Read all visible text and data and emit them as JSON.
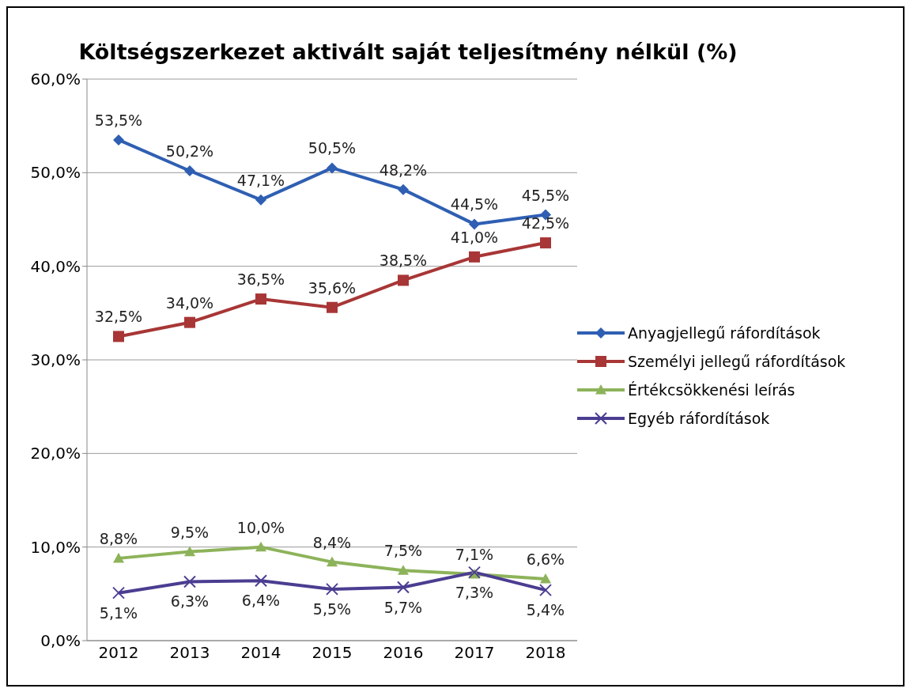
{
  "chart_data": {
    "type": "line",
    "title": "Költségszerkezet aktivált saját teljesítmény nélkül (%)",
    "categories": [
      "2012",
      "2013",
      "2014",
      "2015",
      "2016",
      "2017",
      "2018"
    ],
    "series": [
      {
        "name": "Anyagjellegű ráfordítások",
        "color": "#2f5fb3",
        "marker": "diamond",
        "values": [
          53.5,
          50.2,
          47.1,
          50.5,
          48.2,
          44.5,
          45.5
        ],
        "value_labels": [
          "53,5%",
          "50,2%",
          "47,1%",
          "50,5%",
          "48,2%",
          "44,5%",
          "45,5%"
        ]
      },
      {
        "name": "Személyi jellegű ráfordítások",
        "color": "#a83636",
        "marker": "square",
        "values": [
          32.5,
          34.0,
          36.5,
          35.6,
          38.5,
          41.0,
          42.5
        ],
        "value_labels": [
          "32,5%",
          "34,0%",
          "36,5%",
          "35,6%",
          "38,5%",
          "41,0%",
          "42,5%"
        ]
      },
      {
        "name": "Értékcsökkenési leírás",
        "color": "#8db35a",
        "marker": "triangle",
        "values": [
          8.8,
          9.5,
          10.0,
          8.4,
          7.5,
          7.1,
          6.6
        ],
        "value_labels": [
          "8,8%",
          "9,5%",
          "10,0%",
          "8,4%",
          "7,5%",
          "7,1%",
          "6,6%"
        ]
      },
      {
        "name": "Egyéb ráfordítások",
        "color": "#4b3d91",
        "marker": "cross",
        "values": [
          5.1,
          6.3,
          6.4,
          5.5,
          5.7,
          7.3,
          5.4
        ],
        "value_labels": [
          "5,1%",
          "6,3%",
          "6,4%",
          "5,5%",
          "5,7%",
          "7,3%",
          "5,4%"
        ]
      }
    ],
    "ylim": [
      0,
      60
    ],
    "yticks": [
      {
        "value": 0,
        "label": "0,0%"
      },
      {
        "value": 10,
        "label": "10,0%"
      },
      {
        "value": 20,
        "label": "20,0%"
      },
      {
        "value": 30,
        "label": "30,0%"
      },
      {
        "value": 40,
        "label": "40,0%"
      },
      {
        "value": 50,
        "label": "50,0%"
      },
      {
        "value": 60,
        "label": "60,0%"
      }
    ],
    "grid": "y",
    "legend": "right",
    "line_style": "solid"
  }
}
